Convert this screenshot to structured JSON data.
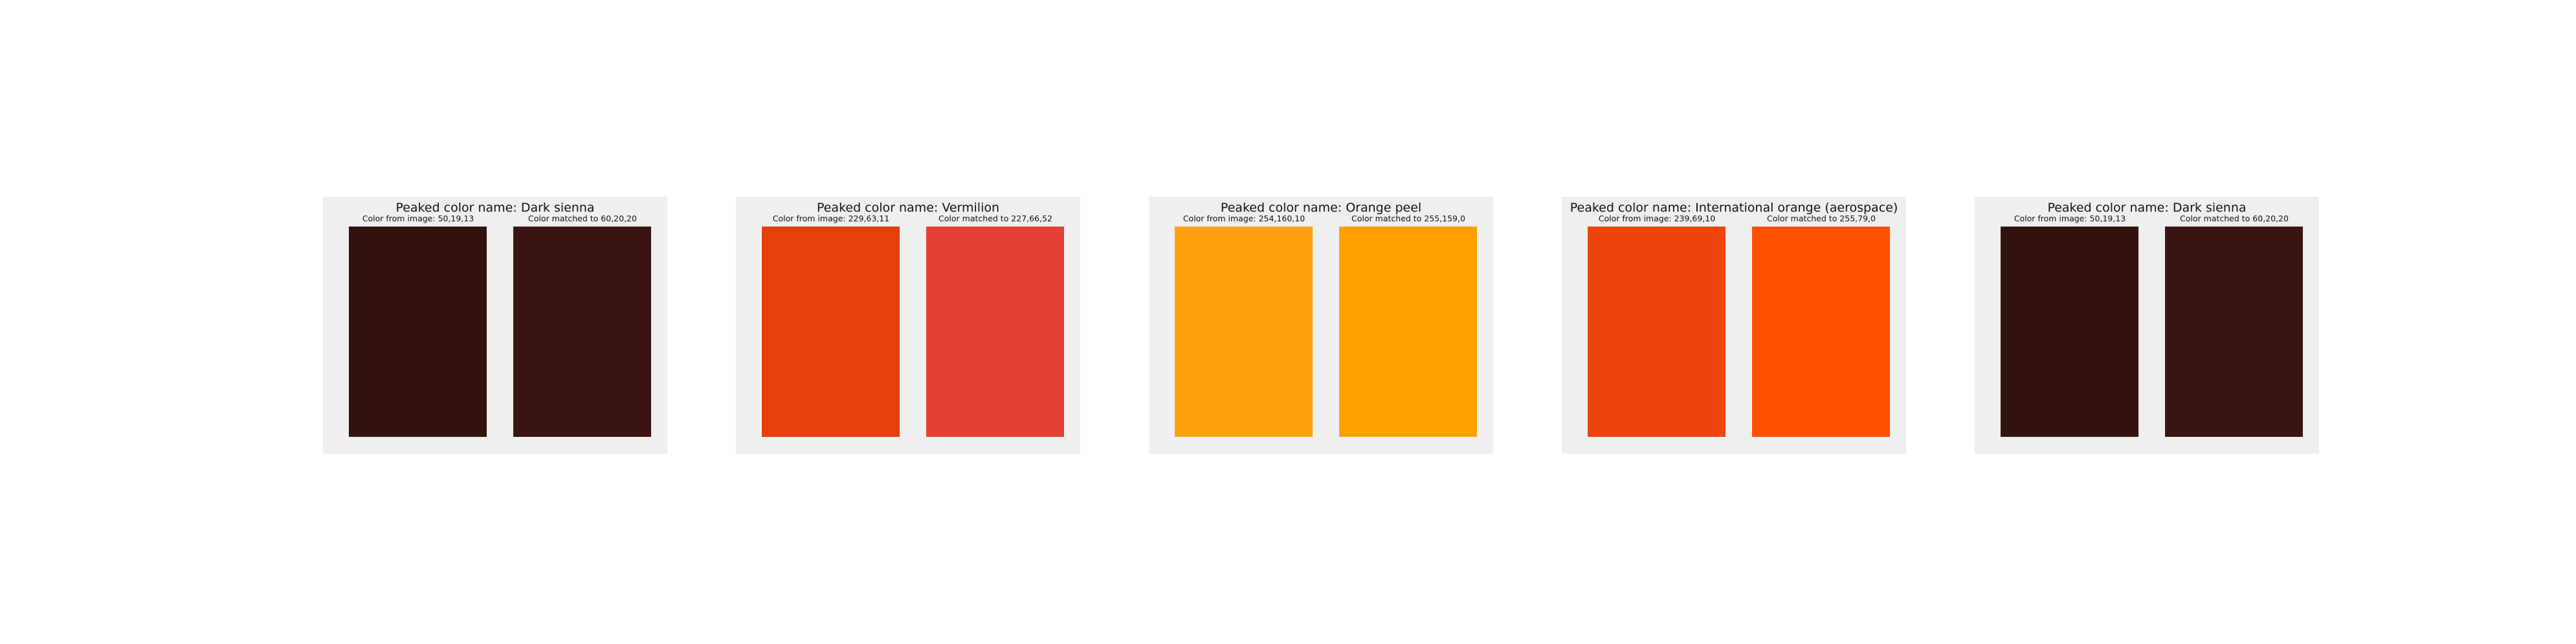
{
  "panels": [
    {
      "title": "Peaked color name: Dark sienna",
      "from_label": "Color from image: 50,19,13",
      "match_label": "Color matched to 60,20,20",
      "from_color": "#32130d",
      "match_color": "#3c1414"
    },
    {
      "title": "Peaked color name: Vermilion",
      "from_label": "Color from image: 229,63,11",
      "match_label": "Color matched to 227,66,52",
      "from_color": "#e53f0b",
      "match_color": "#e34234"
    },
    {
      "title": "Peaked color name: Orange peel",
      "from_label": "Color from image: 254,160,10",
      "match_label": "Color matched to 255,159,0",
      "from_color": "#fea00a",
      "match_color": "#ff9f00"
    },
    {
      "title": "Peaked color name: International orange (aerospace)",
      "from_label": "Color from image: 239,69,10",
      "match_label": "Color matched to 255,79,0",
      "from_color": "#ef450a",
      "match_color": "#ff4f00"
    },
    {
      "title": "Peaked color name: Dark sienna",
      "from_label": "Color from image: 50,19,13",
      "match_label": "Color matched to 60,20,20",
      "from_color": "#32130d",
      "match_color": "#3c1414"
    }
  ]
}
